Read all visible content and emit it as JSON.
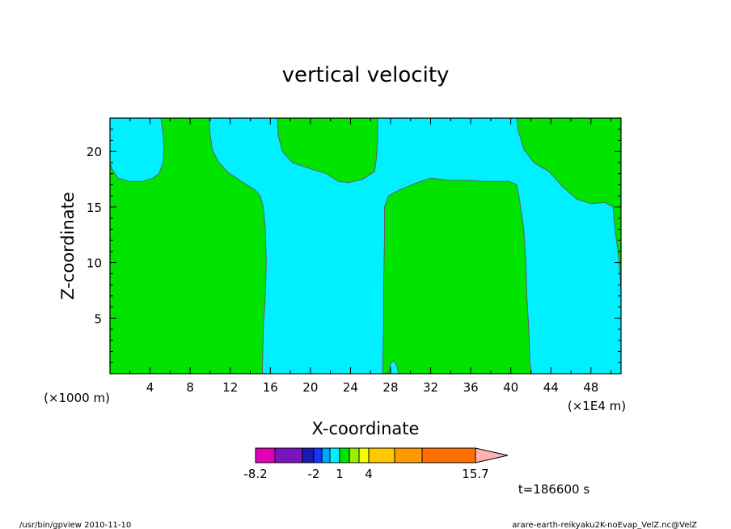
{
  "chart_data": {
    "type": "heatmap",
    "title": "vertical velocity",
    "xlabel": "X-coordinate",
    "ylabel": "Z-coordinate",
    "x_unit_left": "(×1000 m)",
    "x_unit_right": "(×1E4 m)",
    "xlim": [
      0,
      51
    ],
    "ylim": [
      0,
      23
    ],
    "x_ticks": [
      4,
      8,
      12,
      16,
      20,
      24,
      28,
      32,
      36,
      40,
      44,
      48
    ],
    "y_ticks": [
      5,
      10,
      15,
      20
    ],
    "regions": [
      {
        "level": "green",
        "points": [
          [
            0,
            0
          ],
          [
            15.2,
            0
          ],
          [
            15.3,
            4
          ],
          [
            15.5,
            7
          ],
          [
            15.6,
            10
          ],
          [
            15.5,
            13
          ],
          [
            15.3,
            15
          ],
          [
            15,
            16
          ],
          [
            14.5,
            16.5
          ],
          [
            13.3,
            17.2
          ],
          [
            11.8,
            18.1
          ],
          [
            10.8,
            19.1
          ],
          [
            10.2,
            20.2
          ],
          [
            10,
            21.5
          ],
          [
            9.9,
            23
          ],
          [
            5.1,
            23
          ],
          [
            5.3,
            21.5
          ],
          [
            5.4,
            20.2
          ],
          [
            5.3,
            19
          ],
          [
            4.9,
            18
          ],
          [
            4.3,
            17.6
          ],
          [
            3.2,
            17.3
          ],
          [
            2,
            17.3
          ],
          [
            0.8,
            17.6
          ],
          [
            0.2,
            18.4
          ],
          [
            0,
            19
          ]
        ]
      },
      {
        "level": "green",
        "points": [
          [
            16.7,
            23
          ],
          [
            16.8,
            21.4
          ],
          [
            17.2,
            20
          ],
          [
            18.2,
            19
          ],
          [
            19.8,
            18.5
          ],
          [
            21.6,
            18
          ],
          [
            22.8,
            17.3
          ],
          [
            23.8,
            17.2
          ],
          [
            25.2,
            17.5
          ],
          [
            26.4,
            18.2
          ],
          [
            26.6,
            19.5
          ],
          [
            26.7,
            21
          ],
          [
            26.7,
            23
          ]
        ]
      },
      {
        "level": "green",
        "points": [
          [
            27.2,
            0
          ],
          [
            27.3,
            4
          ],
          [
            27.3,
            8
          ],
          [
            27.4,
            12
          ],
          [
            27.4,
            15
          ],
          [
            27.8,
            16
          ],
          [
            28.8,
            16.5
          ],
          [
            30.4,
            17.1
          ],
          [
            32,
            17.6
          ],
          [
            33.8,
            17.4
          ],
          [
            35.6,
            17.4
          ],
          [
            37.4,
            17.3
          ],
          [
            39.8,
            17.3
          ],
          [
            40.6,
            17
          ],
          [
            40.9,
            15.5
          ],
          [
            41.3,
            13
          ],
          [
            41.5,
            10
          ],
          [
            41.6,
            7
          ],
          [
            41.8,
            4
          ],
          [
            41.9,
            1
          ],
          [
            42.1,
            0
          ],
          [
            28.8,
            0
          ],
          [
            28.6,
            0.8
          ],
          [
            28.3,
            1.2
          ],
          [
            28,
            0.9
          ],
          [
            27.9,
            0.1
          ]
        ]
      },
      {
        "level": "green",
        "points": [
          [
            40.6,
            23
          ],
          [
            40.7,
            22
          ],
          [
            41.3,
            20.2
          ],
          [
            42.3,
            19
          ],
          [
            43.8,
            18.2
          ],
          [
            45.2,
            16.8
          ],
          [
            46.6,
            15.7
          ],
          [
            48,
            15.3
          ],
          [
            49.4,
            15.4
          ],
          [
            50.2,
            15
          ],
          [
            50.4,
            13
          ],
          [
            50.7,
            11
          ],
          [
            50.9,
            9
          ],
          [
            51,
            7.2
          ],
          [
            51,
            23
          ]
        ]
      }
    ],
    "colorbar": {
      "tick_labels": [
        "-8.2",
        "-2",
        "1",
        "4",
        "15.7"
      ],
      "colors": [
        "#e000b8",
        "#7a14be",
        "#1a1ab4",
        "#1438ff",
        "#00a6ff",
        "#00f0ff",
        "#00e400",
        "#9cee00",
        "#f6ff00",
        "#ffc800",
        "#ff9a00",
        "#ff7000",
        "#f60000",
        "#ff7c7c",
        "#ffb2b2"
      ]
    },
    "time_label": "t=186600 s",
    "colors": {
      "green": "#00e400",
      "cyan": "#00f0ff",
      "line": "#606060"
    }
  },
  "footer": {
    "left": "/usr/bin/gpview   2010-11-10",
    "right": "arare-earth-reikyaku2K-noEvap_VelZ.nc@VelZ"
  }
}
